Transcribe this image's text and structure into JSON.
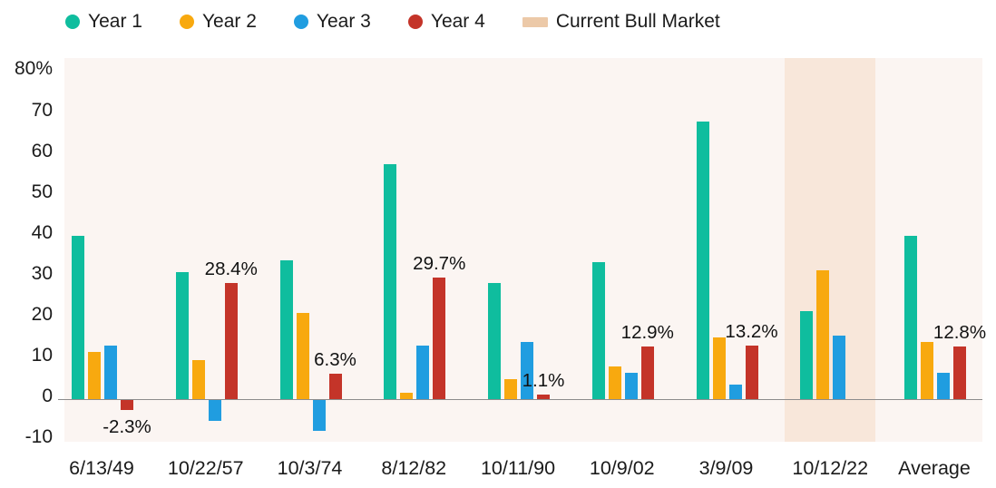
{
  "legend": {
    "items": [
      {
        "label": "Year 1",
        "color": "#0FBD9E",
        "shape": "circle"
      },
      {
        "label": "Year 2",
        "color": "#F8A90F",
        "shape": "circle"
      },
      {
        "label": "Year 3",
        "color": "#209DE0",
        "shape": "circle"
      },
      {
        "label": "Year 4",
        "color": "#C43429",
        "shape": "circle"
      },
      {
        "label": "Current Bull Market",
        "color": "#ECC9A8",
        "shape": "rect"
      }
    ]
  },
  "chart_data": {
    "type": "bar",
    "title": "",
    "categories": [
      "6/13/49",
      "10/22/57",
      "10/3/74",
      "8/12/82",
      "10/11/90",
      "10/9/02",
      "3/9/09",
      "10/12/22",
      "Average"
    ],
    "series": [
      {
        "name": "Year 1",
        "color": "#0FBD9E",
        "values": [
          40,
          31,
          34,
          57.5,
          28.5,
          33.5,
          68,
          21.5,
          40
        ]
      },
      {
        "name": "Year 2",
        "color": "#F8A90F",
        "values": [
          11.5,
          9.5,
          21,
          1.5,
          5,
          8,
          15,
          31.5,
          14
        ]
      },
      {
        "name": "Year 3",
        "color": "#209DE0",
        "values": [
          13,
          -5,
          -7.5,
          13,
          14,
          6.5,
          3.5,
          15.5,
          6.5
        ]
      },
      {
        "name": "Year 4",
        "color": "#C43429",
        "values": [
          -2.3,
          28.4,
          6.3,
          29.7,
          1.1,
          12.9,
          13.2,
          null,
          12.8
        ]
      }
    ],
    "data_labels": {
      "series": "Year 4",
      "labels": [
        "-2.3%",
        "28.4%",
        "6.3%",
        "29.7%",
        "1.1%",
        "12.9%",
        "13.2%",
        "",
        "12.8%"
      ]
    },
    "highlight_band": {
      "category": "10/12/22",
      "legend_label": "Current Bull Market",
      "band_color": "#F8E7DA",
      "legend_swatch_color": "#ECC9A8"
    },
    "y_axis": {
      "min": -10,
      "max": 80,
      "unit": "%",
      "ticks": [
        {
          "label": "80%",
          "value": 80
        },
        {
          "label": "70",
          "value": 70
        },
        {
          "label": "60",
          "value": 60
        },
        {
          "label": "50",
          "value": 50
        },
        {
          "label": "40",
          "value": 40
        },
        {
          "label": "30",
          "value": 30
        },
        {
          "label": "20",
          "value": 20
        },
        {
          "label": "10",
          "value": 10
        },
        {
          "label": "0",
          "value": 0
        },
        {
          "label": "-10",
          "value": -10
        }
      ]
    },
    "colors": {
      "plot_background": "#FBF5F2",
      "axis_line": "#8C8C8C",
      "text": "#1B1B1B",
      "page_background": "#FFFFFF"
    },
    "grid": false,
    "legend_position": "top"
  }
}
